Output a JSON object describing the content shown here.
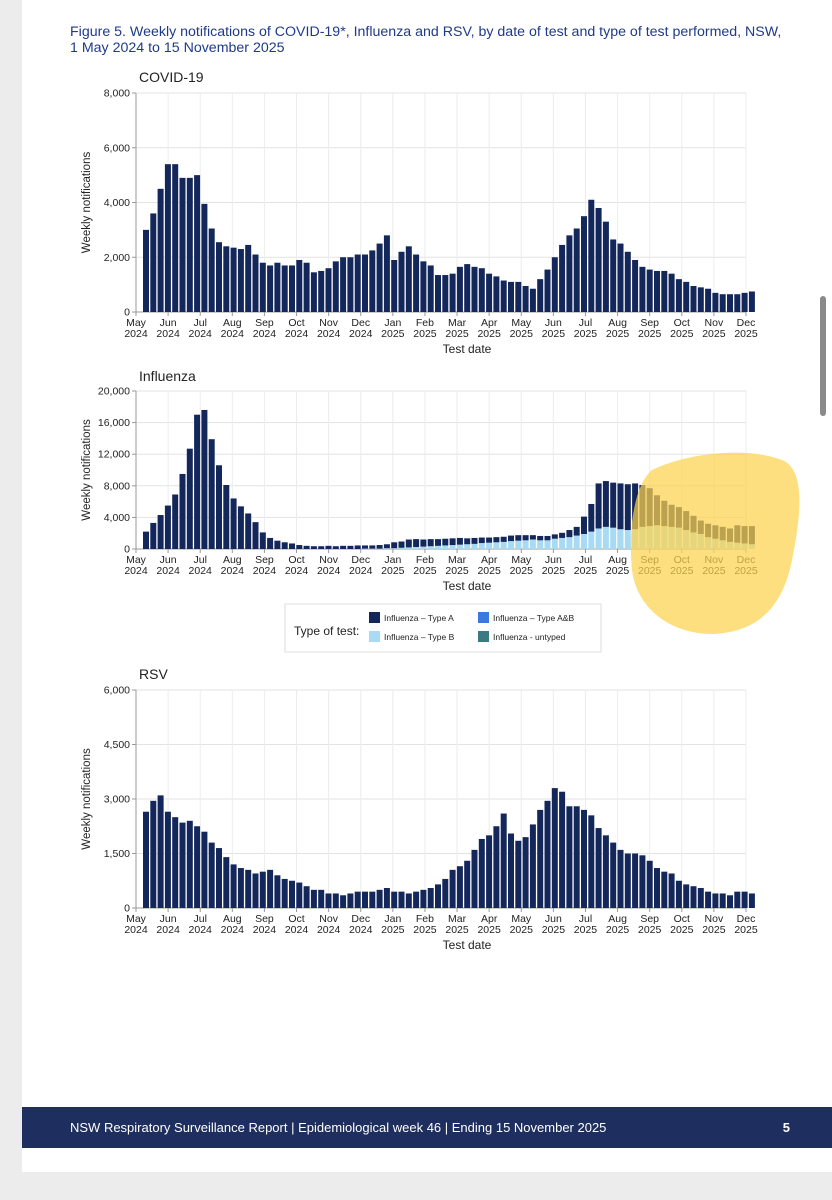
{
  "figure_title": "Figure 5. Weekly notifications of COVID-19*, Influenza and RSV, by date of test and type of test performed, NSW, 1 May 2024 to 15 November 2025",
  "footer": {
    "text": "NSW Respiratory Surveillance Report | Epidemiological week 46 | Ending 15 November 2025",
    "page_number": "5"
  },
  "colors": {
    "type_a": "#14275a",
    "type_b": "#a8daf4",
    "type_ab": "#3b78e0",
    "untyped": "#3b7a80",
    "highlight": "#fcd34d",
    "footer_bg": "#1e2e5e",
    "title": "#1f3a8a"
  },
  "chart_data": [
    {
      "type": "bar",
      "title": "COVID-19",
      "xlabel": "Test date",
      "ylabel": "Weekly notifications",
      "ylim": [
        0,
        8000
      ],
      "yticks": [
        "0",
        "2,000",
        "4,000",
        "6,000",
        "8,000"
      ],
      "xticks": [
        "May 2024",
        "Jun 2024",
        "Jul 2024",
        "Aug 2024",
        "Sep 2024",
        "Oct 2024",
        "Nov 2024",
        "Dec 2024",
        "Jan 2025",
        "Feb 2025",
        "Mar 2025",
        "Apr 2025",
        "May 2025",
        "Jun 2025",
        "Jul 2025",
        "Aug 2025",
        "Sep 2025",
        "Oct 2025",
        "Nov 2025",
        "Dec 2025"
      ],
      "grid": true,
      "values": [
        3000,
        3600,
        4500,
        5400,
        5400,
        4900,
        4900,
        5000,
        3950,
        3050,
        2550,
        2400,
        2350,
        2300,
        2450,
        2100,
        1800,
        1700,
        1800,
        1700,
        1700,
        1900,
        1800,
        1450,
        1500,
        1600,
        1850,
        2000,
        2000,
        2100,
        2100,
        2250,
        2500,
        2800,
        1900,
        2200,
        2400,
        2100,
        1850,
        1700,
        1350,
        1350,
        1400,
        1650,
        1750,
        1650,
        1600,
        1400,
        1300,
        1150,
        1100,
        1100,
        950,
        850,
        1200,
        1550,
        2000,
        2450,
        2800,
        3050,
        3500,
        4100,
        3800,
        3300,
        2650,
        2500,
        2200,
        1900,
        1650,
        1550,
        1500,
        1500,
        1400,
        1200,
        1100,
        950,
        900,
        850,
        700,
        650,
        650,
        650,
        700,
        750
      ]
    },
    {
      "type": "bar",
      "stacked": true,
      "title": "Influenza",
      "xlabel": "Test date",
      "ylabel": "Weekly notifications",
      "ylim": [
        0,
        20000
      ],
      "yticks": [
        "0",
        "4,000",
        "8,000",
        "12,000",
        "16,000",
        "20,000"
      ],
      "xticks": [
        "May 2024",
        "Jun 2024",
        "Jul 2024",
        "Aug 2024",
        "Sep 2024",
        "Oct 2024",
        "Nov 2024",
        "Dec 2024",
        "Jan 2025",
        "Feb 2025",
        "Mar 2025",
        "Apr 2025",
        "May 2025",
        "Jun 2025",
        "Jul 2025",
        "Aug 2025",
        "Sep 2025",
        "Oct 2025",
        "Nov 2025",
        "Dec 2025"
      ],
      "grid": true,
      "legend": {
        "title": "Type of test:",
        "position": "bottom-center",
        "items": [
          {
            "label": "Influenza – Type A",
            "color": "#14275a"
          },
          {
            "label": "Influenza – Type A&B",
            "color": "#3b78e0"
          },
          {
            "label": "Influenza – Type B",
            "color": "#a8daf4"
          },
          {
            "label": "Influenza - untyped",
            "color": "#3b7a80"
          }
        ]
      },
      "series": [
        {
          "name": "Influenza – Type A",
          "color": "#14275a",
          "values": [
            2200,
            3300,
            4300,
            5500,
            6900,
            9500,
            12700,
            17000,
            17600,
            13900,
            10600,
            8100,
            6400,
            5400,
            4500,
            3400,
            2100,
            1400,
            1050,
            850,
            700,
            500,
            400,
            350,
            350,
            400,
            350,
            400,
            400,
            450,
            400,
            400,
            450,
            500,
            750,
            800,
            1000,
            1000,
            900,
            900,
            850,
            850,
            850,
            850,
            750,
            750,
            700,
            650,
            650,
            650,
            700,
            700,
            650,
            550,
            550,
            550,
            550,
            650,
            900,
            1100,
            2200,
            3500,
            5700,
            5800,
            5700,
            5800,
            5800,
            5800,
            5300,
            4800,
            3800,
            3200,
            2800,
            2600,
            2400,
            2100,
            1700,
            1700,
            1700,
            1700,
            1700,
            2200,
            2200,
            2300
          ]
        },
        {
          "name": "Influenza – Type B",
          "color": "#a8daf4",
          "values": [
            0,
            0,
            0,
            0,
            0,
            0,
            0,
            0,
            0,
            0,
            0,
            0,
            0,
            0,
            0,
            0,
            0,
            0,
            0,
            0,
            0,
            0,
            0,
            0,
            0,
            0,
            0,
            0,
            0,
            0,
            50,
            50,
            50,
            100,
            100,
            150,
            200,
            250,
            300,
            350,
            400,
            450,
            500,
            550,
            600,
            650,
            750,
            800,
            850,
            900,
            1000,
            1050,
            1100,
            1200,
            1100,
            1100,
            1300,
            1400,
            1500,
            1700,
            1900,
            2200,
            2600,
            2800,
            2700,
            2500,
            2400,
            2500,
            2800,
            2900,
            3000,
            2900,
            2800,
            2700,
            2400,
            2100,
            1900,
            1500,
            1300,
            1100,
            900,
            800,
            700,
            600
          ]
        },
        {
          "name": "Influenza – Type A&B",
          "color": "#3b78e0",
          "values": [
            0,
            0,
            0,
            0,
            0,
            0,
            0,
            0,
            0,
            0,
            0,
            0,
            0,
            0,
            0,
            0,
            0,
            0,
            0,
            0,
            0,
            0,
            0,
            0,
            0,
            0,
            0,
            0,
            0,
            0,
            0,
            0,
            0,
            0,
            0,
            0,
            0,
            0,
            0,
            0,
            0,
            0,
            0,
            0,
            0,
            0,
            0,
            0,
            0,
            0,
            0,
            0,
            0,
            0,
            0,
            0,
            0,
            0,
            0,
            0,
            0,
            0,
            0,
            0,
            0,
            0,
            0,
            0,
            0,
            0,
            0,
            0,
            0,
            0,
            0,
            0,
            0,
            0,
            0,
            0,
            0,
            0,
            0,
            0
          ]
        },
        {
          "name": "Influenza - untyped",
          "color": "#3b7a80",
          "values": [
            0,
            0,
            0,
            0,
            0,
            0,
            0,
            0,
            0,
            0,
            0,
            0,
            0,
            0,
            0,
            0,
            0,
            0,
            0,
            0,
            0,
            0,
            0,
            0,
            0,
            0,
            0,
            0,
            0,
            0,
            0,
            0,
            0,
            0,
            0,
            0,
            0,
            0,
            0,
            0,
            0,
            0,
            0,
            0,
            0,
            0,
            0,
            0,
            0,
            0,
            0,
            0,
            0,
            0,
            0,
            0,
            0,
            0,
            0,
            0,
            0,
            0,
            0,
            0,
            0,
            0,
            0,
            0,
            0,
            0,
            0,
            0,
            0,
            0,
            0,
            0,
            0,
            0,
            0,
            0,
            0,
            0,
            0,
            0
          ]
        }
      ]
    },
    {
      "type": "bar",
      "title": "RSV",
      "xlabel": "Test date",
      "ylabel": "Weekly notifications",
      "ylim": [
        0,
        6000
      ],
      "yticks": [
        "0",
        "1,500",
        "3,000",
        "4,500",
        "6,000"
      ],
      "xticks": [
        "May 2024",
        "Jun 2024",
        "Jul 2024",
        "Aug 2024",
        "Sep 2024",
        "Oct 2024",
        "Nov 2024",
        "Dec 2024",
        "Jan 2025",
        "Feb 2025",
        "Mar 2025",
        "Apr 2025",
        "May 2025",
        "Jun 2025",
        "Jul 2025",
        "Aug 2025",
        "Sep 2025",
        "Oct 2025",
        "Nov 2025",
        "Dec 2025"
      ],
      "grid": true,
      "values": [
        2650,
        2950,
        3100,
        2650,
        2500,
        2350,
        2400,
        2250,
        2100,
        1800,
        1650,
        1400,
        1200,
        1100,
        1050,
        950,
        1000,
        1050,
        900,
        800,
        750,
        700,
        600,
        500,
        500,
        400,
        400,
        350,
        400,
        450,
        450,
        450,
        500,
        550,
        450,
        450,
        400,
        450,
        500,
        550,
        650,
        800,
        1050,
        1150,
        1300,
        1600,
        1900,
        2000,
        2250,
        2600,
        2050,
        1850,
        1950,
        2300,
        2700,
        2950,
        3300,
        3200,
        2800,
        2800,
        2700,
        2550,
        2200,
        2000,
        1800,
        1600,
        1500,
        1500,
        1450,
        1300,
        1100,
        1000,
        950,
        750,
        650,
        600,
        550,
        450,
        400,
        400,
        350,
        450,
        450,
        400
      ]
    }
  ]
}
